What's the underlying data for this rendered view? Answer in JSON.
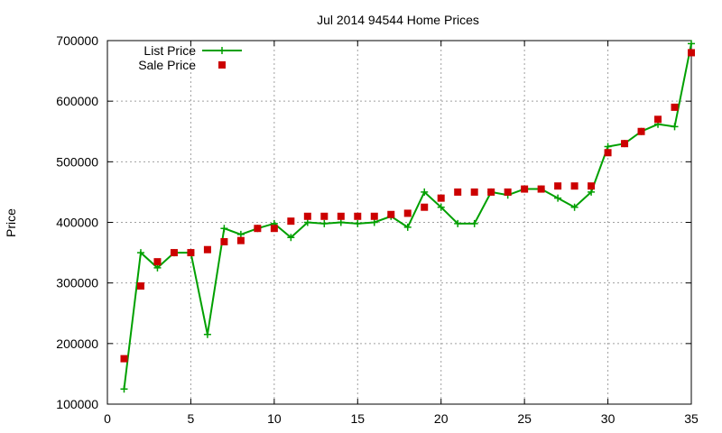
{
  "chart_data": {
    "type": "line",
    "title": "Jul 2014 94544 Home Prices",
    "xlabel": "",
    "ylabel": "Price",
    "xlim": [
      0,
      35
    ],
    "ylim": [
      100000,
      700000
    ],
    "xticks": [
      0,
      5,
      10,
      15,
      20,
      25,
      30,
      35
    ],
    "yticks": [
      100000,
      200000,
      300000,
      400000,
      500000,
      600000,
      700000
    ],
    "grid": true,
    "legend_position": "top-left",
    "series": [
      {
        "name": "List Price",
        "style": "line+cross",
        "color": "#00a000",
        "x": [
          1,
          2,
          3,
          4,
          5,
          6,
          7,
          8,
          9,
          10,
          11,
          12,
          13,
          14,
          15,
          16,
          17,
          18,
          19,
          20,
          21,
          22,
          23,
          24,
          25,
          26,
          27,
          28,
          29,
          30,
          31,
          32,
          33,
          34,
          35
        ],
        "y": [
          125000,
          350000,
          325000,
          350000,
          350000,
          215000,
          390000,
          380000,
          390000,
          398000,
          375000,
          400000,
          398000,
          400000,
          398000,
          400000,
          410000,
          392000,
          450000,
          425000,
          398000,
          398000,
          450000,
          445000,
          455000,
          455000,
          440000,
          425000,
          450000,
          525000,
          530000,
          550000,
          562000,
          558000,
          695000
        ]
      },
      {
        "name": "Sale Price",
        "style": "square-markers",
        "color": "#cc0000",
        "x": [
          1,
          2,
          3,
          4,
          5,
          6,
          7,
          8,
          9,
          10,
          11,
          12,
          13,
          14,
          15,
          16,
          17,
          18,
          19,
          20,
          21,
          22,
          23,
          24,
          25,
          26,
          27,
          28,
          29,
          30,
          31,
          32,
          33,
          34,
          35
        ],
        "y": [
          175000,
          295000,
          335000,
          350000,
          350000,
          355000,
          368000,
          370000,
          390000,
          390000,
          402000,
          410000,
          410000,
          410000,
          410000,
          410000,
          413000,
          415000,
          425000,
          440000,
          450000,
          450000,
          450000,
          450000,
          455000,
          455000,
          460000,
          460000,
          460000,
          515000,
          530000,
          550000,
          570000,
          590000,
          680000
        ]
      }
    ]
  }
}
